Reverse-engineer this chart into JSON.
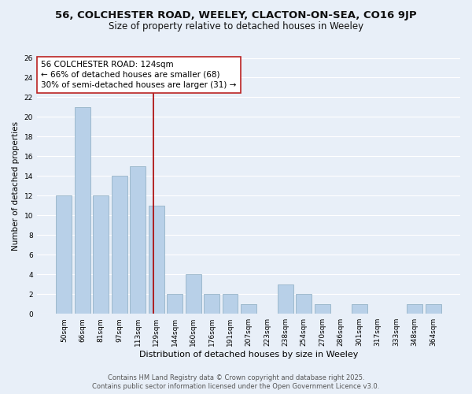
{
  "title1": "56, COLCHESTER ROAD, WEELEY, CLACTON-ON-SEA, CO16 9JP",
  "title2": "Size of property relative to detached houses in Weeley",
  "xlabel": "Distribution of detached houses by size in Weeley",
  "ylabel": "Number of detached properties",
  "bar_labels": [
    "50sqm",
    "66sqm",
    "81sqm",
    "97sqm",
    "113sqm",
    "129sqm",
    "144sqm",
    "160sqm",
    "176sqm",
    "191sqm",
    "207sqm",
    "223sqm",
    "238sqm",
    "254sqm",
    "270sqm",
    "286sqm",
    "301sqm",
    "317sqm",
    "333sqm",
    "348sqm",
    "364sqm"
  ],
  "bar_values": [
    12,
    21,
    12,
    14,
    15,
    11,
    2,
    4,
    2,
    2,
    1,
    0,
    3,
    2,
    1,
    0,
    1,
    0,
    0,
    1,
    1
  ],
  "bar_color": "#b8d0e8",
  "bar_edgecolor": "#8aaabf",
  "background_color": "#e8eff8",
  "grid_color": "#ffffff",
  "vline_color": "#aa0000",
  "annotation_text": "56 COLCHESTER ROAD: 124sqm\n← 66% of detached houses are smaller (68)\n30% of semi-detached houses are larger (31) →",
  "annotation_box_color": "#ffffff",
  "annotation_box_edgecolor": "#bb2222",
  "ylim": [
    0,
    26
  ],
  "yticks": [
    0,
    2,
    4,
    6,
    8,
    10,
    12,
    14,
    16,
    18,
    20,
    22,
    24,
    26
  ],
  "footer1": "Contains HM Land Registry data © Crown copyright and database right 2025.",
  "footer2": "Contains public sector information licensed under the Open Government Licence v3.0.",
  "title1_fontsize": 9.5,
  "title2_fontsize": 8.5,
  "xlabel_fontsize": 8,
  "ylabel_fontsize": 7.5,
  "tick_fontsize": 6.5,
  "annotation_fontsize": 7.5,
  "footer_fontsize": 6.0
}
